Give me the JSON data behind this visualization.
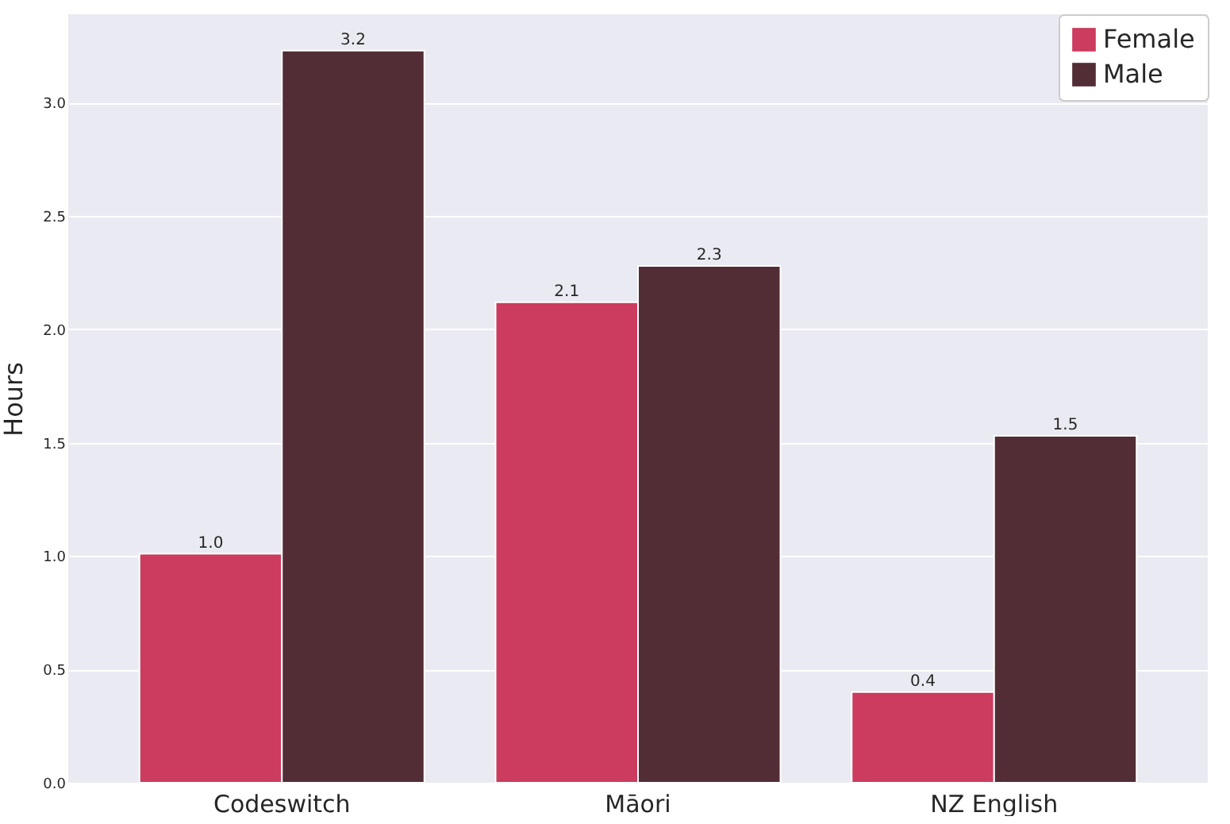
{
  "chart_data": {
    "type": "bar",
    "ylabel": "Hours",
    "categories": [
      "Codeswitch",
      "Māori",
      "NZ English"
    ],
    "series": [
      {
        "name": "Female",
        "color": "#cb3c5e",
        "values": [
          1.01,
          2.12,
          0.4
        ],
        "value_labels": [
          "1.0",
          "2.1",
          "0.4"
        ]
      },
      {
        "name": "Male",
        "color": "#532d36",
        "values": [
          3.23,
          2.28,
          1.53
        ],
        "value_labels": [
          "3.2",
          "2.3",
          "1.5"
        ]
      }
    ],
    "ylim": [
      0,
      3.39
    ],
    "yticks": [
      {
        "value": 0,
        "label": "0.0"
      },
      {
        "value": 0.5,
        "label": "0.5"
      },
      {
        "value": 1,
        "label": "1.0"
      },
      {
        "value": 1.5,
        "label": "1.5"
      },
      {
        "value": 2,
        "label": "2.0"
      },
      {
        "value": 2.5,
        "label": "2.5"
      },
      {
        "value": 3,
        "label": "3.0"
      }
    ],
    "grid": "y",
    "legend": "top right"
  }
}
